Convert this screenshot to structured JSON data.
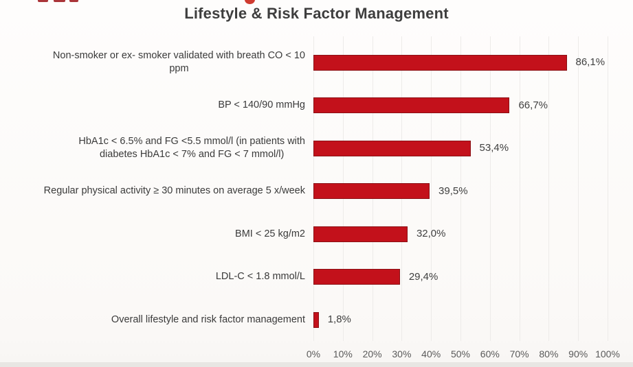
{
  "chart_data": {
    "type": "bar",
    "orientation": "horizontal",
    "title": "Lifestyle & Risk Factor Management",
    "categories": [
      "Non-smoker or ex- smoker validated with breath CO < 10\nppm",
      "BP < 140/90 mmHg",
      "HbA1c < 6.5% and FG <5.5 mmol/l (in patients with\ndiabetes HbA1c < 7% and FG < 7 mmol/l)",
      "Regular physical activity ≥ 30 minutes on average 5 x/week",
      "BMI < 25 kg/m2",
      "LDL-C < 1.8 mmol/L",
      "Overall lifestyle and risk factor management"
    ],
    "values": [
      86.1,
      66.7,
      53.4,
      39.5,
      32.0,
      29.4,
      1.8
    ],
    "value_labels": [
      "86,1%",
      "66,7%",
      "53,4%",
      "39,5%",
      "32,0%",
      "29,4%",
      "1,8%"
    ],
    "xlabel": "",
    "ylabel": "",
    "xlim": [
      0,
      100
    ],
    "x_ticks": [
      "0%",
      "10%",
      "20%",
      "30%",
      "40%",
      "50%",
      "60%",
      "70%",
      "80%",
      "90%",
      "100%"
    ],
    "grid": true,
    "legend": false
  },
  "colors": {
    "bar_fill": "#c3111b",
    "bar_border": "#8a1014",
    "title_text": "#3e3e3e",
    "category_text": "#3a3a3a",
    "value_text": "#3f3f3f",
    "tick_text": "#595959",
    "gridline": "#edebe9",
    "background": "#fdfcfb"
  }
}
